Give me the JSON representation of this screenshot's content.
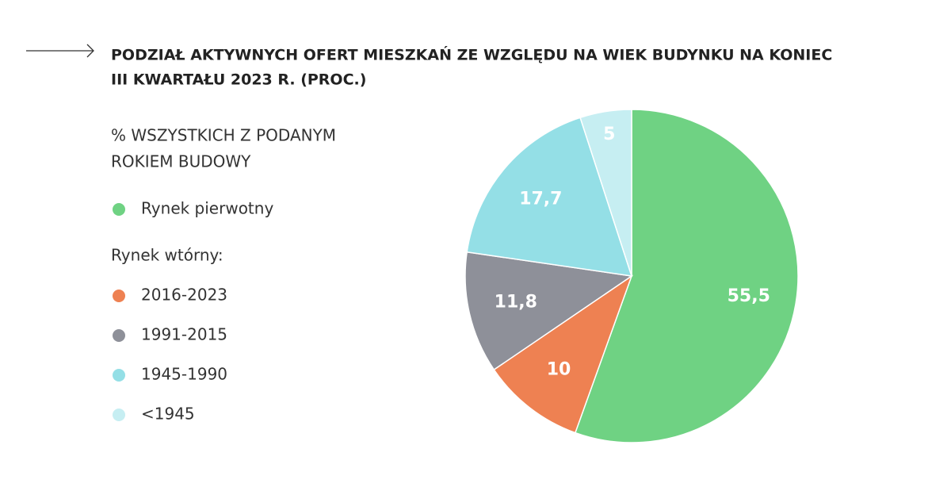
{
  "chart_data": {
    "type": "pie",
    "title": [
      "PODZIAŁ AKTYWNYCH OFERT MIESZKAŃ ZE WZGLĘDU NA WIEK BUDYNKU NA KONIEC",
      "III KWARTAŁU 2023 R. (PROC.)"
    ],
    "subtitle": [
      "% WSZYSTKICH Z PODANYM",
      "ROKIEM BUDOWY"
    ],
    "legend_group_label": "Rynek wtórny:",
    "categories": [
      "Rynek pierwotny",
      "2016-2023",
      "1991-2015",
      "1945-1990",
      "<1945"
    ],
    "values": [
      55.5,
      10,
      11.8,
      17.7,
      5
    ],
    "value_labels": [
      "55,5",
      "10",
      "11,8",
      "17,7",
      "5"
    ],
    "colors": [
      "#6fd283",
      "#ee8152",
      "#8e9099",
      "#94dfe6",
      "#c6eef2"
    ]
  }
}
